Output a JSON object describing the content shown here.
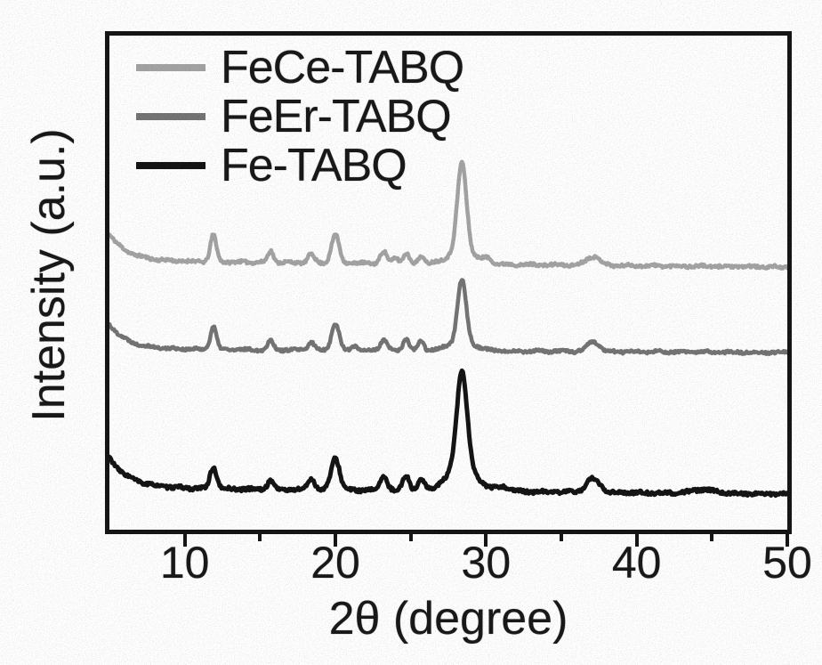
{
  "figure": {
    "background": "#ffffff",
    "frame_color": "#161616",
    "text_color": "#191919"
  },
  "legend": {
    "position": "top-left-inside",
    "items": [
      {
        "label": "FeCe-TABQ",
        "color": "#a4a4a4"
      },
      {
        "label": "FeEr-TABQ",
        "color": "#757575"
      },
      {
        "label": "Fe-TABQ",
        "color": "#151515"
      }
    ]
  },
  "chart_data": {
    "type": "line",
    "title": "",
    "xlabel": "2θ (degree)",
    "ylabel": "Intensity (a.u.)",
    "xlim": [
      5,
      50
    ],
    "x_major_ticks": [
      10,
      20,
      30,
      40,
      50
    ],
    "x_minor_ticks": [
      15,
      25,
      35,
      45
    ],
    "y_ticks": "none (arbitrary units)",
    "grid": false,
    "legend_position": "top-left inside plot",
    "description": "Three stacked powder XRD patterns. Each series: vertical offset in arbitrary units (1 au = 1 px of 555 px plot height), left-edge exponential decay, and Gaussian peaks given as [two_theta_deg, height_au, sigma_deg]. Strongest reflection at ~28.4 deg for all samples.",
    "series": [
      {
        "name": "FeCe-TABQ",
        "color": "#a4a4a4",
        "stroke_width": 4.5,
        "offset_au": 302,
        "tilt_au": -7,
        "noise_au": 1.6,
        "seed": 11,
        "edge": {
          "height_au": 30,
          "decay_deg": 1.2
        },
        "peaks": [
          [
            11.9,
            30,
            0.2
          ],
          [
            15.7,
            13,
            0.18
          ],
          [
            18.4,
            10,
            0.2
          ],
          [
            20.0,
            32,
            0.25
          ],
          [
            23.2,
            13,
            0.22
          ],
          [
            24.0,
            7,
            0.18
          ],
          [
            24.7,
            11,
            0.2
          ],
          [
            25.7,
            9,
            0.18
          ],
          [
            28.4,
            100,
            0.3
          ],
          [
            28.4,
            14,
            0.9
          ],
          [
            30.1,
            5,
            0.3
          ],
          [
            37.1,
            10,
            0.45
          ]
        ]
      },
      {
        "name": "FeEr-TABQ",
        "color": "#757575",
        "stroke_width": 4.5,
        "offset_au": 203,
        "tilt_au": -4,
        "noise_au": 1.5,
        "seed": 22,
        "edge": {
          "height_au": 28,
          "decay_deg": 1.2
        },
        "peaks": [
          [
            11.9,
            26,
            0.2
          ],
          [
            15.7,
            11,
            0.18
          ],
          [
            18.4,
            9,
            0.2
          ],
          [
            20.0,
            30,
            0.25
          ],
          [
            21.3,
            5,
            0.2
          ],
          [
            23.2,
            12,
            0.22
          ],
          [
            24.7,
            13,
            0.2
          ],
          [
            25.7,
            11,
            0.18
          ],
          [
            28.4,
            70,
            0.28
          ],
          [
            28.4,
            10,
            0.9
          ],
          [
            37.1,
            11,
            0.4
          ]
        ]
      },
      {
        "name": "Fe-TABQ",
        "color": "#151515",
        "stroke_width": 5,
        "offset_au": 47,
        "tilt_au": -7,
        "noise_au": 1.8,
        "seed": 33,
        "edge": {
          "height_au": 34,
          "decay_deg": 1.3
        },
        "peaks": [
          [
            11.9,
            24,
            0.22
          ],
          [
            15.7,
            10,
            0.2
          ],
          [
            18.4,
            13,
            0.22
          ],
          [
            20.0,
            36,
            0.28
          ],
          [
            23.2,
            15,
            0.25
          ],
          [
            24.7,
            17,
            0.22
          ],
          [
            25.7,
            12,
            0.2
          ],
          [
            28.4,
            110,
            0.34
          ],
          [
            28.4,
            25,
            1.0
          ],
          [
            31.2,
            5,
            0.4
          ],
          [
            37.1,
            15,
            0.45
          ],
          [
            44.5,
            4,
            0.8
          ]
        ]
      }
    ]
  }
}
